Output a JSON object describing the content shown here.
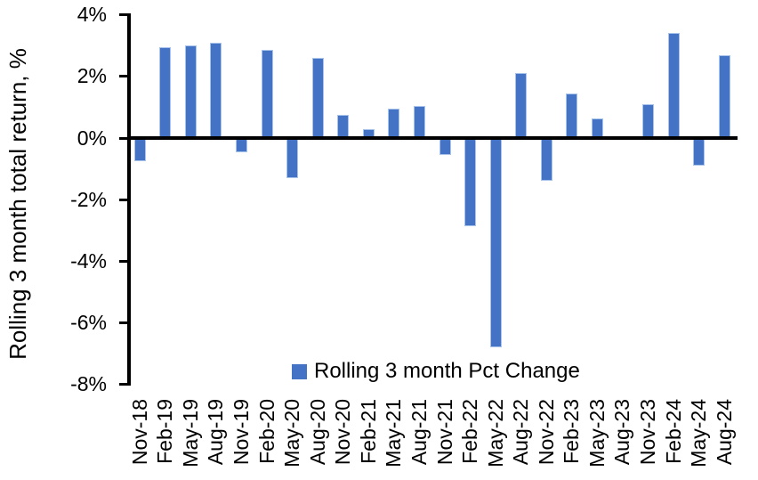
{
  "chart_data": {
    "type": "bar",
    "title": "",
    "xlabel": "",
    "ylabel": "Rolling 3 month total return, %",
    "categories": [
      "Nov-18",
      "Feb-19",
      "May-19",
      "Aug-19",
      "Nov-19",
      "Feb-20",
      "May-20",
      "Aug-20",
      "Nov-20",
      "Feb-21",
      "May-21",
      "Aug-21",
      "Nov-21",
      "Feb-22",
      "May-22",
      "Aug-22",
      "Nov-22",
      "Feb-23",
      "May-23",
      "Aug-23",
      "Nov-23",
      "Feb-24",
      "May-24",
      "Aug-24"
    ],
    "values": [
      -0.75,
      2.95,
      3.0,
      3.1,
      -0.45,
      2.85,
      -1.3,
      2.6,
      0.75,
      0.3,
      0.95,
      1.05,
      -0.55,
      -2.85,
      -6.8,
      2.1,
      -1.4,
      1.45,
      0.65,
      0.0,
      1.1,
      3.4,
      -0.9,
      2.7
    ],
    "ylim": [
      -8,
      4
    ],
    "yticks": [
      {
        "value": 4,
        "label": "4%"
      },
      {
        "value": 2,
        "label": "2%"
      },
      {
        "value": 0,
        "label": "0%"
      },
      {
        "value": -2,
        "label": "-2%"
      },
      {
        "value": -4,
        "label": "-4%"
      },
      {
        "value": -6,
        "label": "-6%"
      },
      {
        "value": -8,
        "label": "-8%"
      }
    ],
    "grid": false,
    "legend": {
      "label": "Rolling 3 month Pct Change",
      "position": "bottom-center"
    },
    "colors": {
      "bar_fill": "#4472C4",
      "bar_edge": "#a9c4ea",
      "axis": "#000000",
      "text": "#000000"
    }
  }
}
